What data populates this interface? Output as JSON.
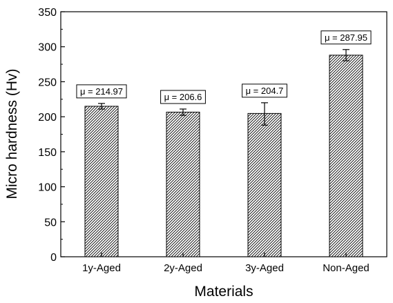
{
  "chart_data": {
    "type": "bar",
    "xlabel": "Materials",
    "ylabel": "Micro hardness (Hv)",
    "categories": [
      "1y-Aged",
      "2y-Aged",
      "3y-Aged",
      "Non-Aged"
    ],
    "values": [
      214.97,
      206.6,
      204.7,
      287.95
    ],
    "error_ranges": [
      [
        211,
        219
      ],
      [
        202,
        211
      ],
      [
        188,
        220
      ],
      [
        280,
        296
      ]
    ],
    "annotations": [
      "μ = 214.97",
      "μ = 206.6",
      "μ = 204.7",
      "μ = 287.95"
    ],
    "ylim": [
      0,
      350
    ],
    "yticks": [
      "0",
      "50",
      "100",
      "150",
      "200",
      "250",
      "300",
      "350"
    ],
    "bar_fill": "diagonal-hatch",
    "grid": false,
    "legend": "none"
  }
}
